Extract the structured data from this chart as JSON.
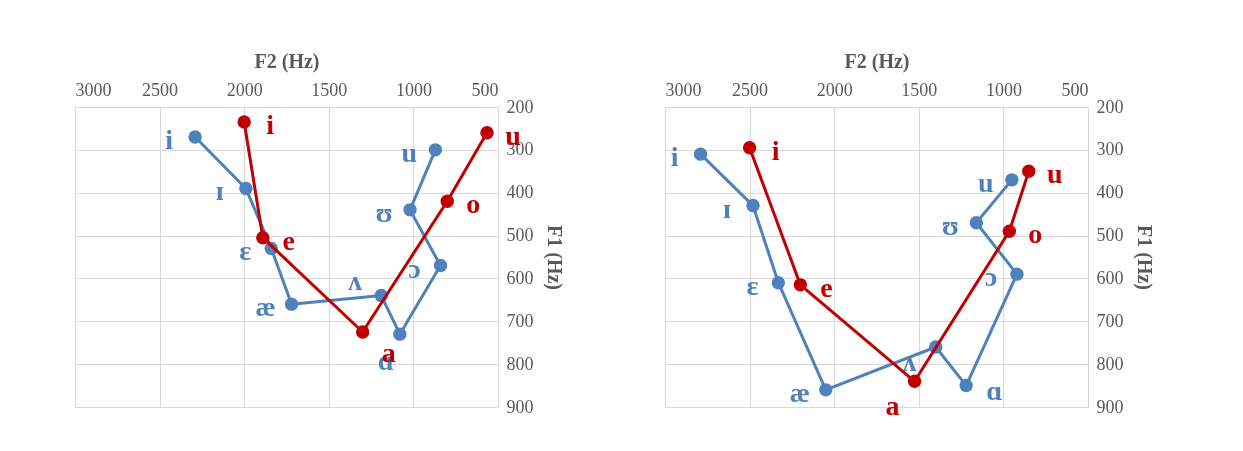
{
  "chart_data": [
    {
      "type": "line",
      "xlabel": "F2 (Hz)",
      "ylabel": "F1 (Hz)",
      "xlim": [
        3000,
        500
      ],
      "xticks": [
        3000,
        2500,
        2000,
        1500,
        1000,
        500
      ],
      "ylim": [
        900,
        200
      ],
      "yticks": [
        200,
        300,
        400,
        500,
        600,
        700,
        800,
        900
      ],
      "grid": true,
      "marker": "circle",
      "line_style": "solid",
      "series": [
        {
          "color": "#4f81bd",
          "x": [
            2290,
            1990,
            1840,
            1720,
            1190,
            1080,
            840,
            1020,
            870
          ],
          "values": [
            270,
            390,
            530,
            660,
            640,
            730,
            570,
            440,
            300
          ],
          "value_labels": [
            "i",
            "ɪ",
            "ɛ",
            "æ",
            "ʌ",
            "ɑ",
            "ɔ",
            "ʊ",
            "u"
          ]
        },
        {
          "color": "#c00000",
          "x": [
            2000,
            1890,
            1300,
            800,
            565
          ],
          "values": [
            235,
            505,
            725,
            420,
            260
          ],
          "value_labels": [
            "i",
            "e",
            "a",
            "o",
            "u"
          ]
        }
      ]
    },
    {
      "type": "line",
      "xlabel": "F2 (Hz)",
      "ylabel": "F1 (Hz)",
      "xlim": [
        3000,
        500
      ],
      "xticks": [
        3000,
        2500,
        2000,
        1500,
        1000,
        500
      ],
      "ylim": [
        900,
        200
      ],
      "yticks": [
        200,
        300,
        400,
        500,
        600,
        700,
        800,
        900
      ],
      "grid": true,
      "marker": "circle",
      "line_style": "solid",
      "series": [
        {
          "color": "#4f81bd",
          "x": [
            2790,
            2480,
            2330,
            2050,
            1400,
            1220,
            920,
            1160,
            950
          ],
          "values": [
            310,
            430,
            610,
            860,
            760,
            850,
            590,
            470,
            370
          ],
          "value_labels": [
            "i",
            "ɪ",
            "ɛ",
            "æ",
            "ʌ",
            "ɑ",
            "ɔ",
            "ʊ",
            "u"
          ]
        },
        {
          "color": "#c00000",
          "x": [
            2500,
            2200,
            1525,
            965,
            850
          ],
          "values": [
            295,
            615,
            840,
            490,
            350
          ],
          "value_labels": [
            "i",
            "e",
            "a",
            "o",
            "u"
          ]
        }
      ]
    }
  ]
}
